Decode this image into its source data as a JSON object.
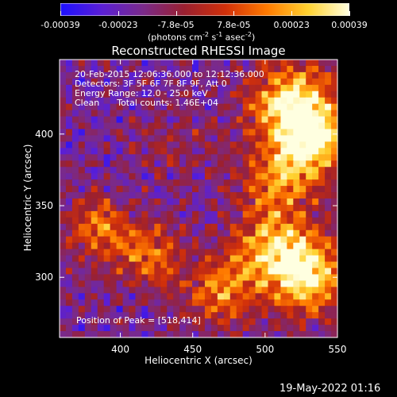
{
  "colorbar": {
    "ticks": [
      "-0.00039",
      "-0.00023",
      "-7.8e-05",
      "7.8e-05",
      "0.00023",
      "0.00039"
    ],
    "unit_parts": [
      "(photons cm",
      "-2",
      " s",
      "-1",
      " asec",
      "-2",
      ")"
    ],
    "colors": [
      "#1d10ff",
      "#5a1fd6",
      "#7a2a8a",
      "#9a2030",
      "#d1300a",
      "#ff7a00",
      "#ffd230",
      "#ffffe0"
    ]
  },
  "chart_data": {
    "type": "heatmap",
    "title": "Reconstructed RHESSI Image",
    "xlabel": "Heliocentric X (arcsec)",
    "ylabel": "Heliocentric Y (arcsec)",
    "xlim": [
      358,
      550
    ],
    "ylim": [
      258,
      452
    ],
    "xticks": [
      400,
      450,
      500,
      550
    ],
    "yticks": [
      300,
      350,
      400
    ],
    "value_range": [
      -0.00039,
      0.00039
    ],
    "peak": [
      518,
      414
    ],
    "sources": [
      {
        "x": 520,
        "y": 420,
        "amp": 1.0,
        "sigma": 20
      },
      {
        "x": 535,
        "y": 395,
        "amp": 0.85,
        "sigma": 16
      },
      {
        "x": 510,
        "y": 370,
        "amp": 0.6,
        "sigma": 18
      },
      {
        "x": 505,
        "y": 320,
        "amp": 0.75,
        "sigma": 20
      },
      {
        "x": 530,
        "y": 300,
        "amp": 0.9,
        "sigma": 18
      },
      {
        "x": 470,
        "y": 290,
        "amp": 0.6,
        "sigma": 16
      },
      {
        "x": 420,
        "y": 315,
        "amp": 0.55,
        "sigma": 16
      },
      {
        "x": 385,
        "y": 335,
        "amp": 0.6,
        "sigma": 14
      },
      {
        "x": 440,
        "y": 395,
        "amp": 0.2,
        "sigma": 18
      }
    ]
  },
  "info": {
    "line1": "20-Feb-2015 12:06:36.000 to 12:12:36.000",
    "line2": "Detectors: 3F 5F 6F 7F 8F 9F, Att 0",
    "line3": "Energy Range: 12.0 - 25.0 keV",
    "line4a": "Clean",
    "line4b": "Total counts: 1.46E+04",
    "peak_label": "Position of Peak = [518,414]"
  },
  "timestamp": "19-May-2022 01:16"
}
